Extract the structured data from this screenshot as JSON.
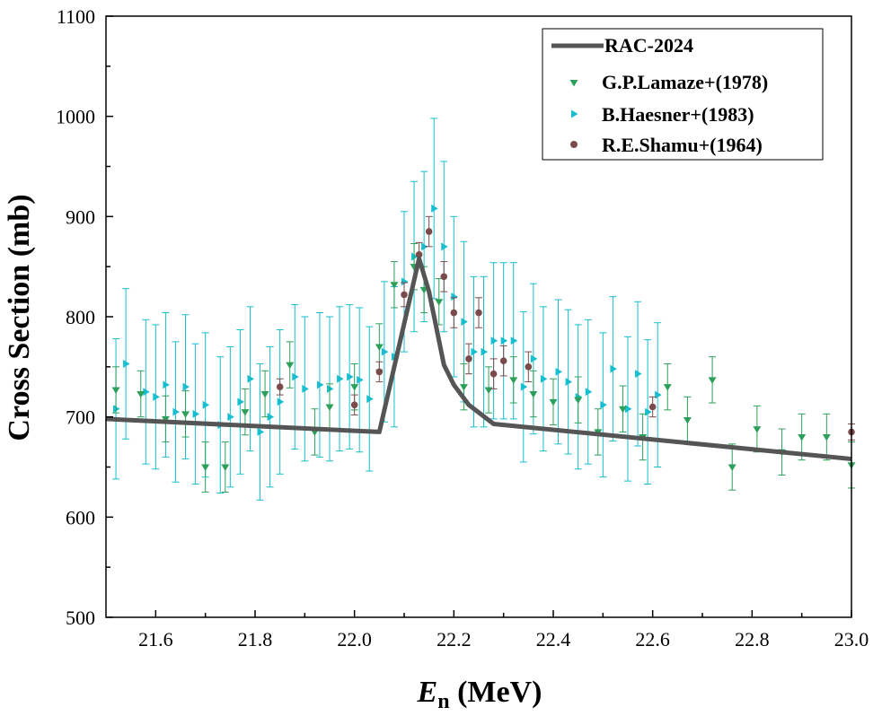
{
  "chart_data": {
    "type": "scatter",
    "title": "",
    "xlabel_main": "E",
    "xlabel_sub": "n",
    "xlabel_unit": " (MeV)",
    "ylabel": "Cross Section (mb)",
    "xlim": [
      21.5,
      23.0
    ],
    "ylim": [
      500,
      1100
    ],
    "xticks": [
      21.6,
      21.8,
      22.0,
      22.2,
      22.4,
      22.6,
      22.8,
      23.0
    ],
    "xtick_labels": [
      "21.6",
      "21.8",
      "22.0",
      "22.2",
      "22.4",
      "22.6",
      "22.8",
      "23.0"
    ],
    "yticks": [
      500,
      600,
      700,
      800,
      900,
      1000,
      1100
    ],
    "ytick_labels": [
      "500",
      "600",
      "700",
      "800",
      "900",
      "1000",
      "1100"
    ],
    "legend_position": "top-right",
    "grid": false,
    "series": [
      {
        "name": "RAC-2024",
        "kind": "line",
        "color": "#555555",
        "x": [
          21.5,
          22.05,
          22.13,
          22.15,
          22.18,
          22.2,
          22.23,
          22.28,
          23.0
        ],
        "y": [
          698,
          685,
          858,
          825,
          752,
          732,
          712,
          693,
          658
        ]
      },
      {
        "name": "G.P.Lamaze+(1978)",
        "kind": "scatter",
        "marker": "triangle-down",
        "color": "#2ca05a",
        "x": [
          21.52,
          21.57,
          21.62,
          21.66,
          21.7,
          21.74,
          21.78,
          21.82,
          21.87,
          21.92,
          21.95,
          22.0,
          22.05,
          22.08,
          22.12,
          22.14,
          22.17,
          22.22,
          22.27,
          22.32,
          22.36,
          22.4,
          22.45,
          22.49,
          22.54,
          22.58,
          22.63,
          22.67,
          22.72,
          22.76,
          22.81,
          22.86,
          22.9,
          22.95,
          23.0
        ],
        "y": [
          727,
          723,
          698,
          703,
          650,
          650,
          705,
          723,
          752,
          685,
          710,
          730,
          770,
          832,
          850,
          827,
          815,
          730,
          727,
          737,
          723,
          715,
          717,
          685,
          708,
          680,
          730,
          697,
          737,
          650,
          688,
          665,
          680,
          680,
          652
        ],
        "err": [
          23,
          23,
          23,
          23,
          25,
          25,
          23,
          23,
          23,
          23,
          23,
          23,
          23,
          23,
          23,
          23,
          23,
          23,
          23,
          23,
          23,
          23,
          23,
          23,
          23,
          23,
          23,
          23,
          23,
          23,
          23,
          23,
          23,
          23,
          23
        ]
      },
      {
        "name": "B.Haesner+(1983)",
        "kind": "scatter",
        "marker": "triangle-right",
        "color": "#17becf",
        "x": [
          21.52,
          21.54,
          21.58,
          21.6,
          21.62,
          21.64,
          21.66,
          21.68,
          21.7,
          21.73,
          21.75,
          21.77,
          21.79,
          21.81,
          21.83,
          21.85,
          21.88,
          21.9,
          21.93,
          21.95,
          21.97,
          21.99,
          22.01,
          22.03,
          22.06,
          22.08,
          22.1,
          22.12,
          22.14,
          22.16,
          22.18,
          22.2,
          22.22,
          22.24,
          22.26,
          22.28,
          22.3,
          22.32,
          22.34,
          22.36,
          22.38,
          22.41,
          22.43,
          22.45,
          22.47,
          22.5,
          22.52,
          22.55,
          22.57,
          22.59,
          22.61
        ],
        "y": [
          708,
          753,
          725,
          720,
          732,
          705,
          730,
          703,
          712,
          692,
          700,
          715,
          738,
          685,
          700,
          715,
          740,
          728,
          732,
          728,
          738,
          740,
          737,
          718,
          765,
          760,
          835,
          860,
          870,
          908,
          870,
          820,
          795,
          765,
          765,
          776,
          776,
          776,
          730,
          758,
          738,
          745,
          735,
          720,
          725,
          712,
          748,
          708,
          743,
          705,
          722
        ],
        "err": [
          70,
          75,
          72,
          72,
          72,
          70,
          72,
          70,
          72,
          68,
          70,
          72,
          72,
          68,
          70,
          72,
          72,
          72,
          72,
          72,
          72,
          72,
          72,
          72,
          70,
          70,
          70,
          75,
          75,
          90,
          85,
          80,
          80,
          75,
          75,
          78,
          78,
          78,
          75,
          75,
          72,
          72,
          72,
          72,
          72,
          72,
          72,
          72,
          72,
          72,
          72
        ]
      },
      {
        "name": "R.E.Shamu+(1964)",
        "kind": "scatter",
        "marker": "circle",
        "color": "#7b4b4b",
        "x": [
          21.85,
          22.0,
          22.05,
          22.1,
          22.13,
          22.15,
          22.18,
          22.2,
          22.23,
          22.25,
          22.28,
          22.3,
          22.35,
          22.6,
          23.0
        ],
        "y": [
          730,
          712,
          745,
          822,
          862,
          885,
          840,
          804,
          758,
          804,
          743,
          756,
          750,
          710,
          685
        ],
        "err": [
          8,
          10,
          10,
          12,
          12,
          15,
          15,
          15,
          15,
          15,
          15,
          15,
          15,
          10,
          8
        ]
      }
    ]
  }
}
